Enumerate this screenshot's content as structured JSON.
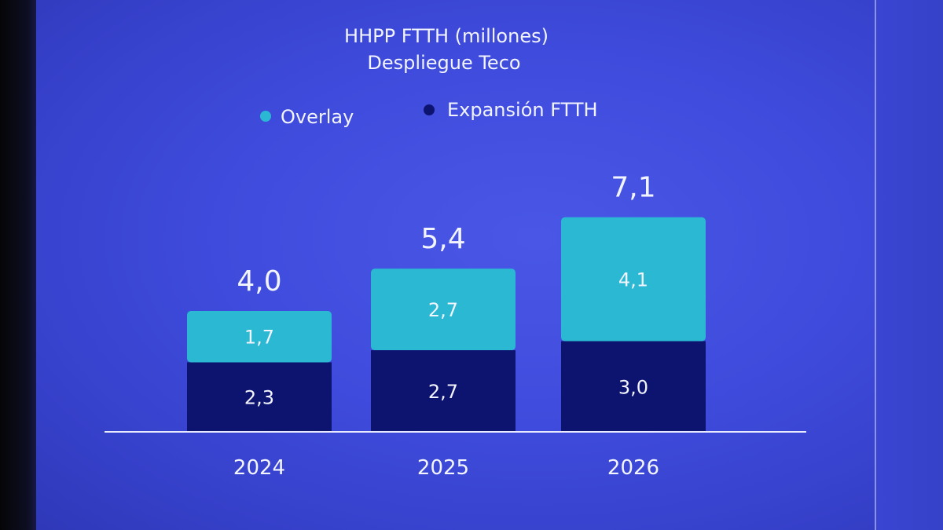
{
  "chart_data": {
    "type": "bar",
    "stacked": true,
    "title": "HHPP FTTH (millones)",
    "subtitle": "Despliegue Teco",
    "categories": [
      "2024",
      "2025",
      "2026"
    ],
    "series": [
      {
        "name": "Expansión FTTH",
        "values": [
          2.3,
          2.7,
          3.0
        ],
        "labels": [
          "2,3",
          "2,7",
          "3,0"
        ],
        "color": "#0d1470"
      },
      {
        "name": "Overlay",
        "values": [
          1.7,
          2.7,
          4.1
        ],
        "labels": [
          "1,7",
          "2,7",
          "4,1"
        ],
        "color": "#2ab8d2"
      }
    ],
    "totals": [
      4.0,
      5.4,
      7.1
    ],
    "total_labels": [
      "4,0",
      "5,4",
      "7,1"
    ],
    "legend": [
      {
        "name": "Overlay",
        "color": "#2ab8d2"
      },
      {
        "name": "Expansión FTTH",
        "color": "#0d1470"
      }
    ],
    "legend_position": "top",
    "ylim": [
      0,
      8
    ],
    "xlabel": "",
    "ylabel": "",
    "grid": false
  }
}
